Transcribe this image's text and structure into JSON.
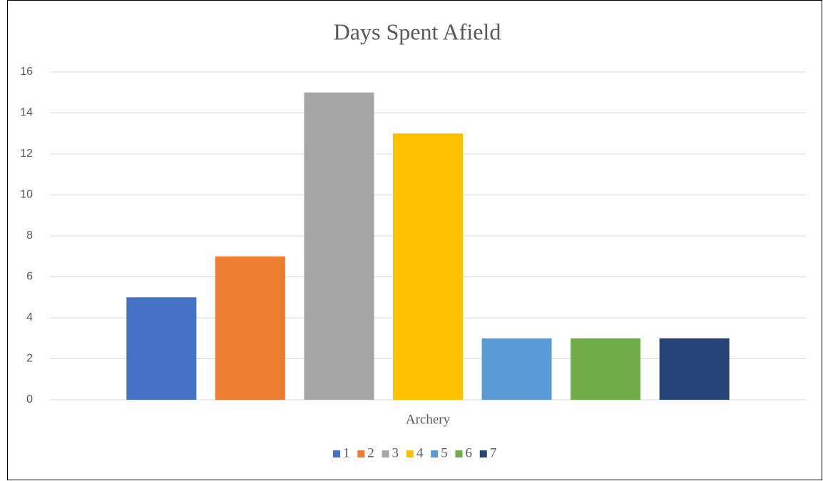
{
  "chart_data": {
    "type": "bar",
    "title": "Days Spent Afield",
    "categories": [
      "Archery"
    ],
    "series": [
      {
        "name": "1",
        "color": "#4472c4",
        "values": [
          5
        ]
      },
      {
        "name": "2",
        "color": "#ed7d31",
        "values": [
          7
        ]
      },
      {
        "name": "3",
        "color": "#a5a5a5",
        "values": [
          15
        ]
      },
      {
        "name": "4",
        "color": "#ffc000",
        "values": [
          13
        ]
      },
      {
        "name": "5",
        "color": "#5b9bd5",
        "values": [
          3
        ]
      },
      {
        "name": "6",
        "color": "#70ad47",
        "values": [
          3
        ]
      },
      {
        "name": "7",
        "color": "#264478",
        "values": [
          3
        ]
      }
    ],
    "ylim": [
      0,
      16
    ],
    "yticks": [
      0,
      2,
      4,
      6,
      8,
      10,
      12,
      14,
      16
    ],
    "grid": true,
    "legend": "bottom"
  }
}
